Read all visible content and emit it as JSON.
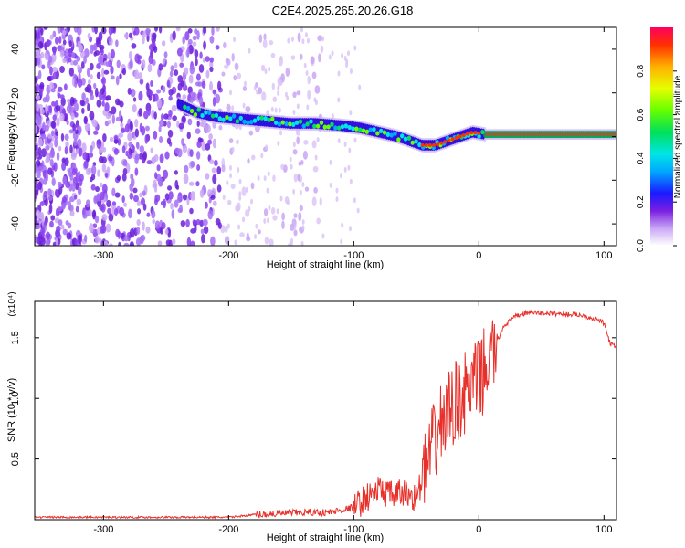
{
  "title": "C2E4.2025.265.20.26.G18",
  "chart_data": [
    {
      "type": "heatmap",
      "xlabel": "Height of straight line (km)",
      "ylabel": "Frequency (Hz)",
      "xlim": [
        -355,
        110
      ],
      "ylim": [
        -50,
        50
      ],
      "x_ticks": [
        "-300",
        "-200",
        "-100",
        "0",
        "100"
      ],
      "y_ticks": [
        "40",
        "20",
        "0",
        "-20",
        "-40"
      ],
      "colorbar": {
        "label": "Normalized spectral amplitude",
        "range": [
          0,
          1
        ],
        "ticks": [
          "0.0",
          "0.2",
          "0.4",
          "0.6",
          "0.8"
        ]
      },
      "ridge": {
        "x": [
          -240,
          -225,
          -210,
          -190,
          -170,
          -150,
          -130,
          -110,
          -95,
          -80,
          -65,
          -55,
          -45,
          -35,
          -25,
          -15,
          -5,
          5,
          110
        ],
        "y": [
          15,
          11,
          9,
          8,
          7,
          6,
          6,
          5,
          4,
          2,
          0,
          -2,
          -4,
          -4,
          -2,
          0,
          2,
          1,
          1
        ]
      },
      "grid": false
    },
    {
      "type": "line",
      "xlabel": "Height of straight line (km)",
      "ylabel": "SNR (10 * v/v)",
      "y_multiplier": "(x10⁴)",
      "xlim": [
        -355,
        110
      ],
      "ylim": [
        0,
        1.8
      ],
      "x_ticks": [
        "-300",
        "-200",
        "-100",
        "0",
        "100"
      ],
      "y_ticks": [
        "0.5",
        "1.0",
        "1.5"
      ],
      "series": [
        {
          "color": "#e8302a",
          "x": [
            -355,
            -300,
            -250,
            -200,
            -180,
            -160,
            -140,
            -120,
            -100,
            -90,
            -80,
            -70,
            -60,
            -50,
            -40,
            -30,
            -20,
            -10,
            0,
            10,
            20,
            30,
            40,
            60,
            80,
            95,
            100,
            105,
            110
          ],
          "y": [
            0.02,
            0.02,
            0.02,
            0.02,
            0.04,
            0.05,
            0.06,
            0.06,
            0.1,
            0.18,
            0.25,
            0.2,
            0.22,
            0.18,
            0.5,
            0.8,
            0.95,
            1.05,
            1.15,
            1.35,
            1.6,
            1.68,
            1.71,
            1.7,
            1.69,
            1.65,
            1.62,
            1.45,
            1.42
          ]
        }
      ],
      "grid": false
    }
  ]
}
